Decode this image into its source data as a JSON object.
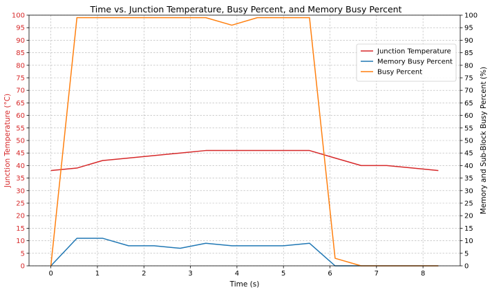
{
  "chart_data": {
    "type": "line",
    "title": "Time vs. Junction Temperature, Busy Percent, and Memory Busy Percent",
    "xlabel": "Time (s)",
    "ylabel_left": "Junction Temperature (°C)",
    "ylabel_right": "Memory and Sub-Block Busy Percent (%)",
    "xlim": [
      -0.47,
      8.8
    ],
    "ylim_left": [
      0,
      100
    ],
    "ylim_right": [
      0,
      100
    ],
    "xticks": [
      0,
      1,
      2,
      3,
      4,
      5,
      6,
      7,
      8
    ],
    "yticks": [
      0,
      5,
      10,
      15,
      20,
      25,
      30,
      35,
      40,
      45,
      50,
      55,
      60,
      65,
      70,
      75,
      80,
      85,
      90,
      95,
      100
    ],
    "grid": true,
    "legend_position": "top-right",
    "left_axis_color": "#d62728",
    "series": [
      {
        "name": "Junction Temperature",
        "color": "#d62728",
        "axis": "left",
        "x": [
          0,
          0.56,
          1.11,
          1.67,
          2.22,
          2.78,
          3.33,
          3.89,
          4.44,
          5.0,
          5.56,
          6.11,
          6.67,
          7.22,
          7.78,
          8.33
        ],
        "values": [
          38,
          39,
          42,
          43,
          44,
          45,
          46,
          46,
          46,
          46,
          46,
          43,
          40,
          40,
          39,
          38
        ]
      },
      {
        "name": "Memory Busy Percent",
        "color": "#1f77b4",
        "axis": "right",
        "x": [
          0,
          0.56,
          1.11,
          1.67,
          2.22,
          2.78,
          3.33,
          3.89,
          4.44,
          5.0,
          5.56,
          6.11,
          6.67,
          7.22,
          7.78,
          8.33
        ],
        "values": [
          0,
          11,
          11,
          8,
          8,
          7,
          9,
          8,
          8,
          8,
          9,
          0,
          0,
          0,
          0,
          0
        ]
      },
      {
        "name": "Busy Percent",
        "color": "#ff7f0e",
        "axis": "right",
        "x": [
          0,
          0.56,
          1.11,
          1.67,
          2.22,
          2.78,
          3.33,
          3.89,
          4.44,
          5.0,
          5.56,
          6.11,
          6.67,
          7.22,
          7.78,
          8.33
        ],
        "values": [
          0,
          99,
          99,
          99,
          99,
          99,
          99,
          96,
          99,
          99,
          99,
          3,
          0,
          0,
          0,
          0
        ]
      }
    ]
  }
}
